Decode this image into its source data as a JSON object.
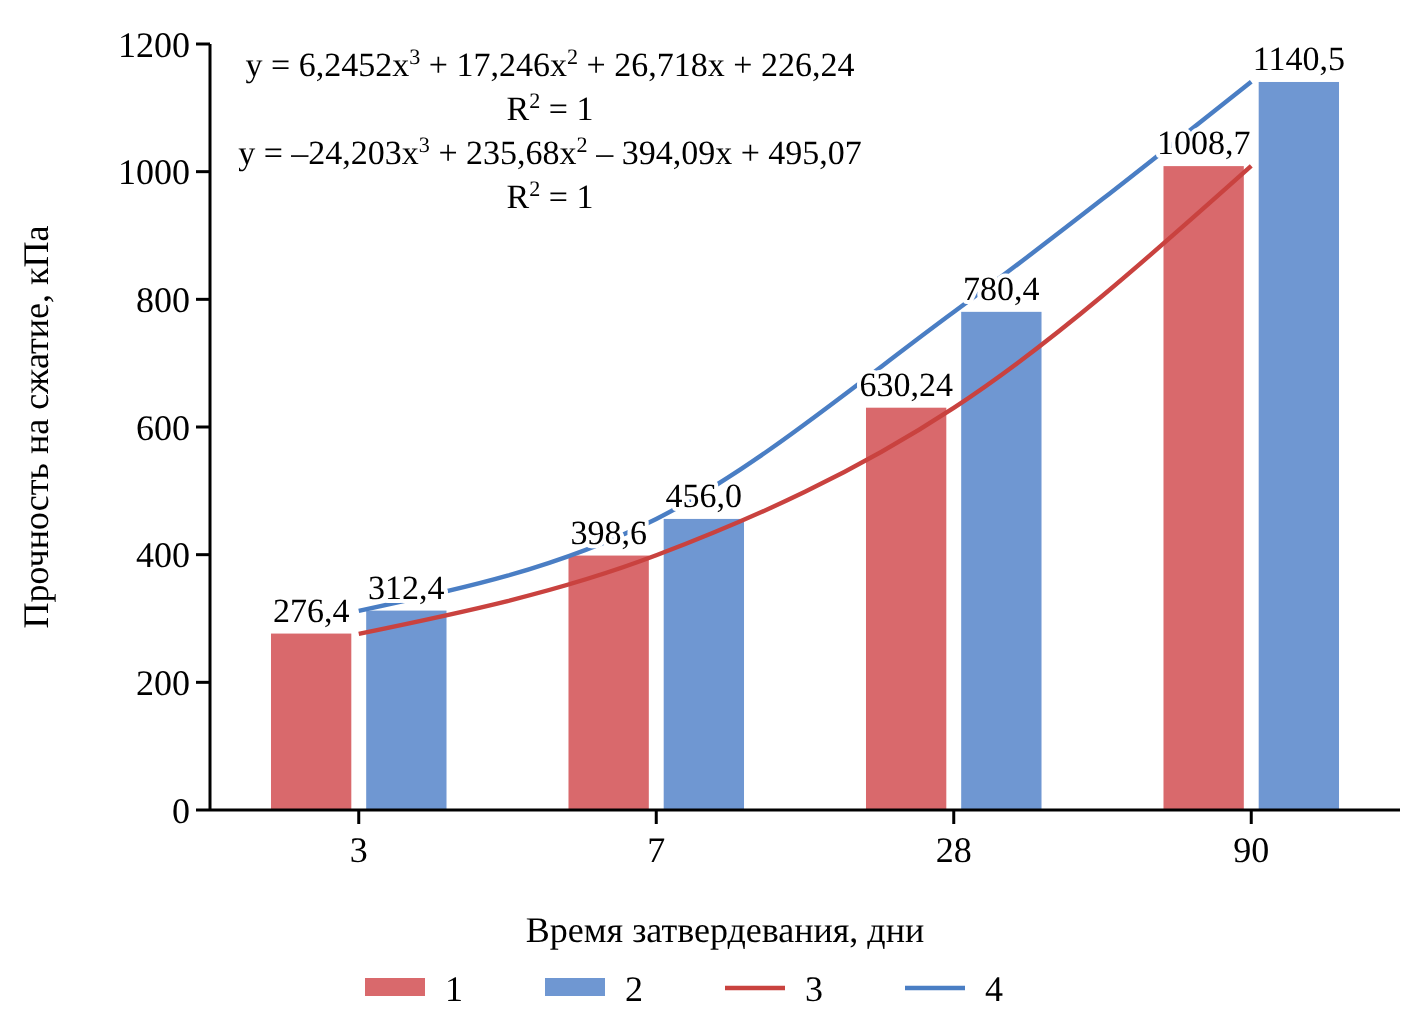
{
  "chart_data": {
    "type": "bar",
    "xlabel": "Время затвердевания, дни",
    "ylabel": "Прочность на сжатие, кПа",
    "categories": [
      "3",
      "7",
      "28",
      "90"
    ],
    "ylim": [
      0,
      1200
    ],
    "yticks": [
      0,
      200,
      400,
      600,
      800,
      1000,
      1200
    ],
    "grid": false,
    "legend": "bottom",
    "series": [
      {
        "name": "1",
        "color": "#d9696c",
        "values": [
          276.4,
          398.6,
          630.24,
          1008.7
        ],
        "value_labels": [
          "276,4",
          "398,6",
          "630,24",
          "1008,7"
        ]
      },
      {
        "name": "2",
        "color": "#6f97d2",
        "values": [
          312.4,
          456.0,
          780.4,
          1140.5
        ],
        "value_labels": [
          "312,4",
          "456,0",
          "780,4",
          "1140,5"
        ]
      },
      {
        "name": "3",
        "type": "line",
        "color": "#c9423f",
        "values": [
          276,
          399,
          630,
          1009
        ]
      },
      {
        "name": "4",
        "type": "line",
        "color": "#4a7ec4",
        "values": [
          312,
          456,
          780,
          1141
        ]
      }
    ],
    "annotations": [
      "y = 6,2452x$^{3}$ + 17,246x$^{2}$ + 26,718x + 226,24",
      "R$^{2}$ = 1",
      "y = –24,203x$^{3}$ + 235,68x$^{2}$ – 394,09x + 495,07",
      "R$^{2}$ = 1"
    ]
  }
}
